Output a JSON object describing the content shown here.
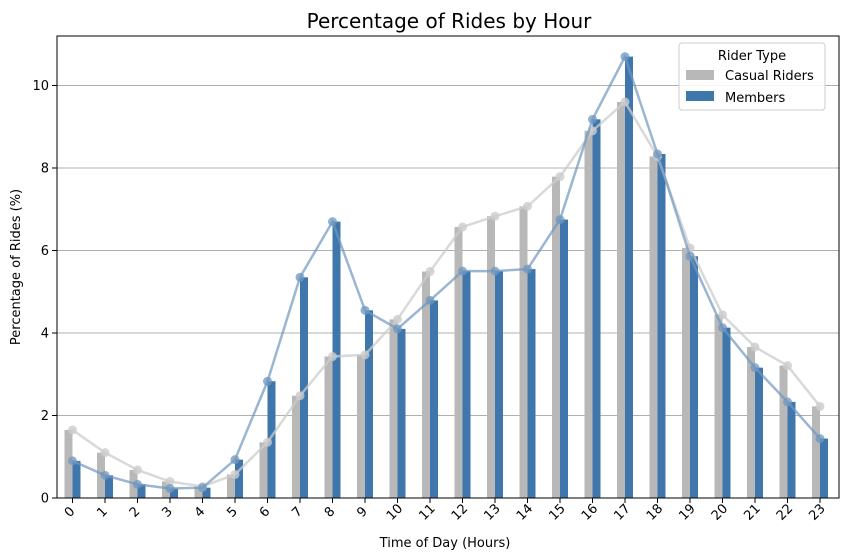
{
  "chart_data": {
    "type": "bar",
    "title": "Percentage of Rides by Hour",
    "xlabel": "Time of Day (Hours)",
    "ylabel": "Percentage of Rides (%)",
    "ylim": [
      0,
      11.2
    ],
    "yticks": [
      0,
      2,
      4,
      6,
      8,
      10
    ],
    "grid": "horizontal",
    "legend_title": "Rider Type",
    "legend_position": "top-right",
    "categories": [
      "0",
      "1",
      "2",
      "3",
      "4",
      "5",
      "6",
      "7",
      "8",
      "9",
      "10",
      "11",
      "12",
      "13",
      "14",
      "15",
      "16",
      "17",
      "18",
      "19",
      "20",
      "21",
      "22",
      "23"
    ],
    "series": [
      {
        "name": "Casual Riders",
        "color": "#b8b8b8",
        "line_color": "#cccccc",
        "values": [
          1.65,
          1.1,
          0.68,
          0.4,
          0.28,
          0.57,
          1.35,
          2.48,
          3.43,
          3.47,
          4.33,
          5.49,
          6.57,
          6.83,
          7.07,
          7.79,
          8.9,
          9.6,
          8.28,
          6.06,
          4.44,
          3.66,
          3.21,
          2.22
        ]
      },
      {
        "name": "Members",
        "color": "#3f77ad",
        "line_color": "#6f97bf",
        "values": [
          0.9,
          0.55,
          0.33,
          0.23,
          0.25,
          0.93,
          2.83,
          5.35,
          6.7,
          4.55,
          4.1,
          4.79,
          5.5,
          5.5,
          5.55,
          6.75,
          9.18,
          10.7,
          8.34,
          5.86,
          4.13,
          3.16,
          2.33,
          1.44
        ]
      }
    ]
  }
}
